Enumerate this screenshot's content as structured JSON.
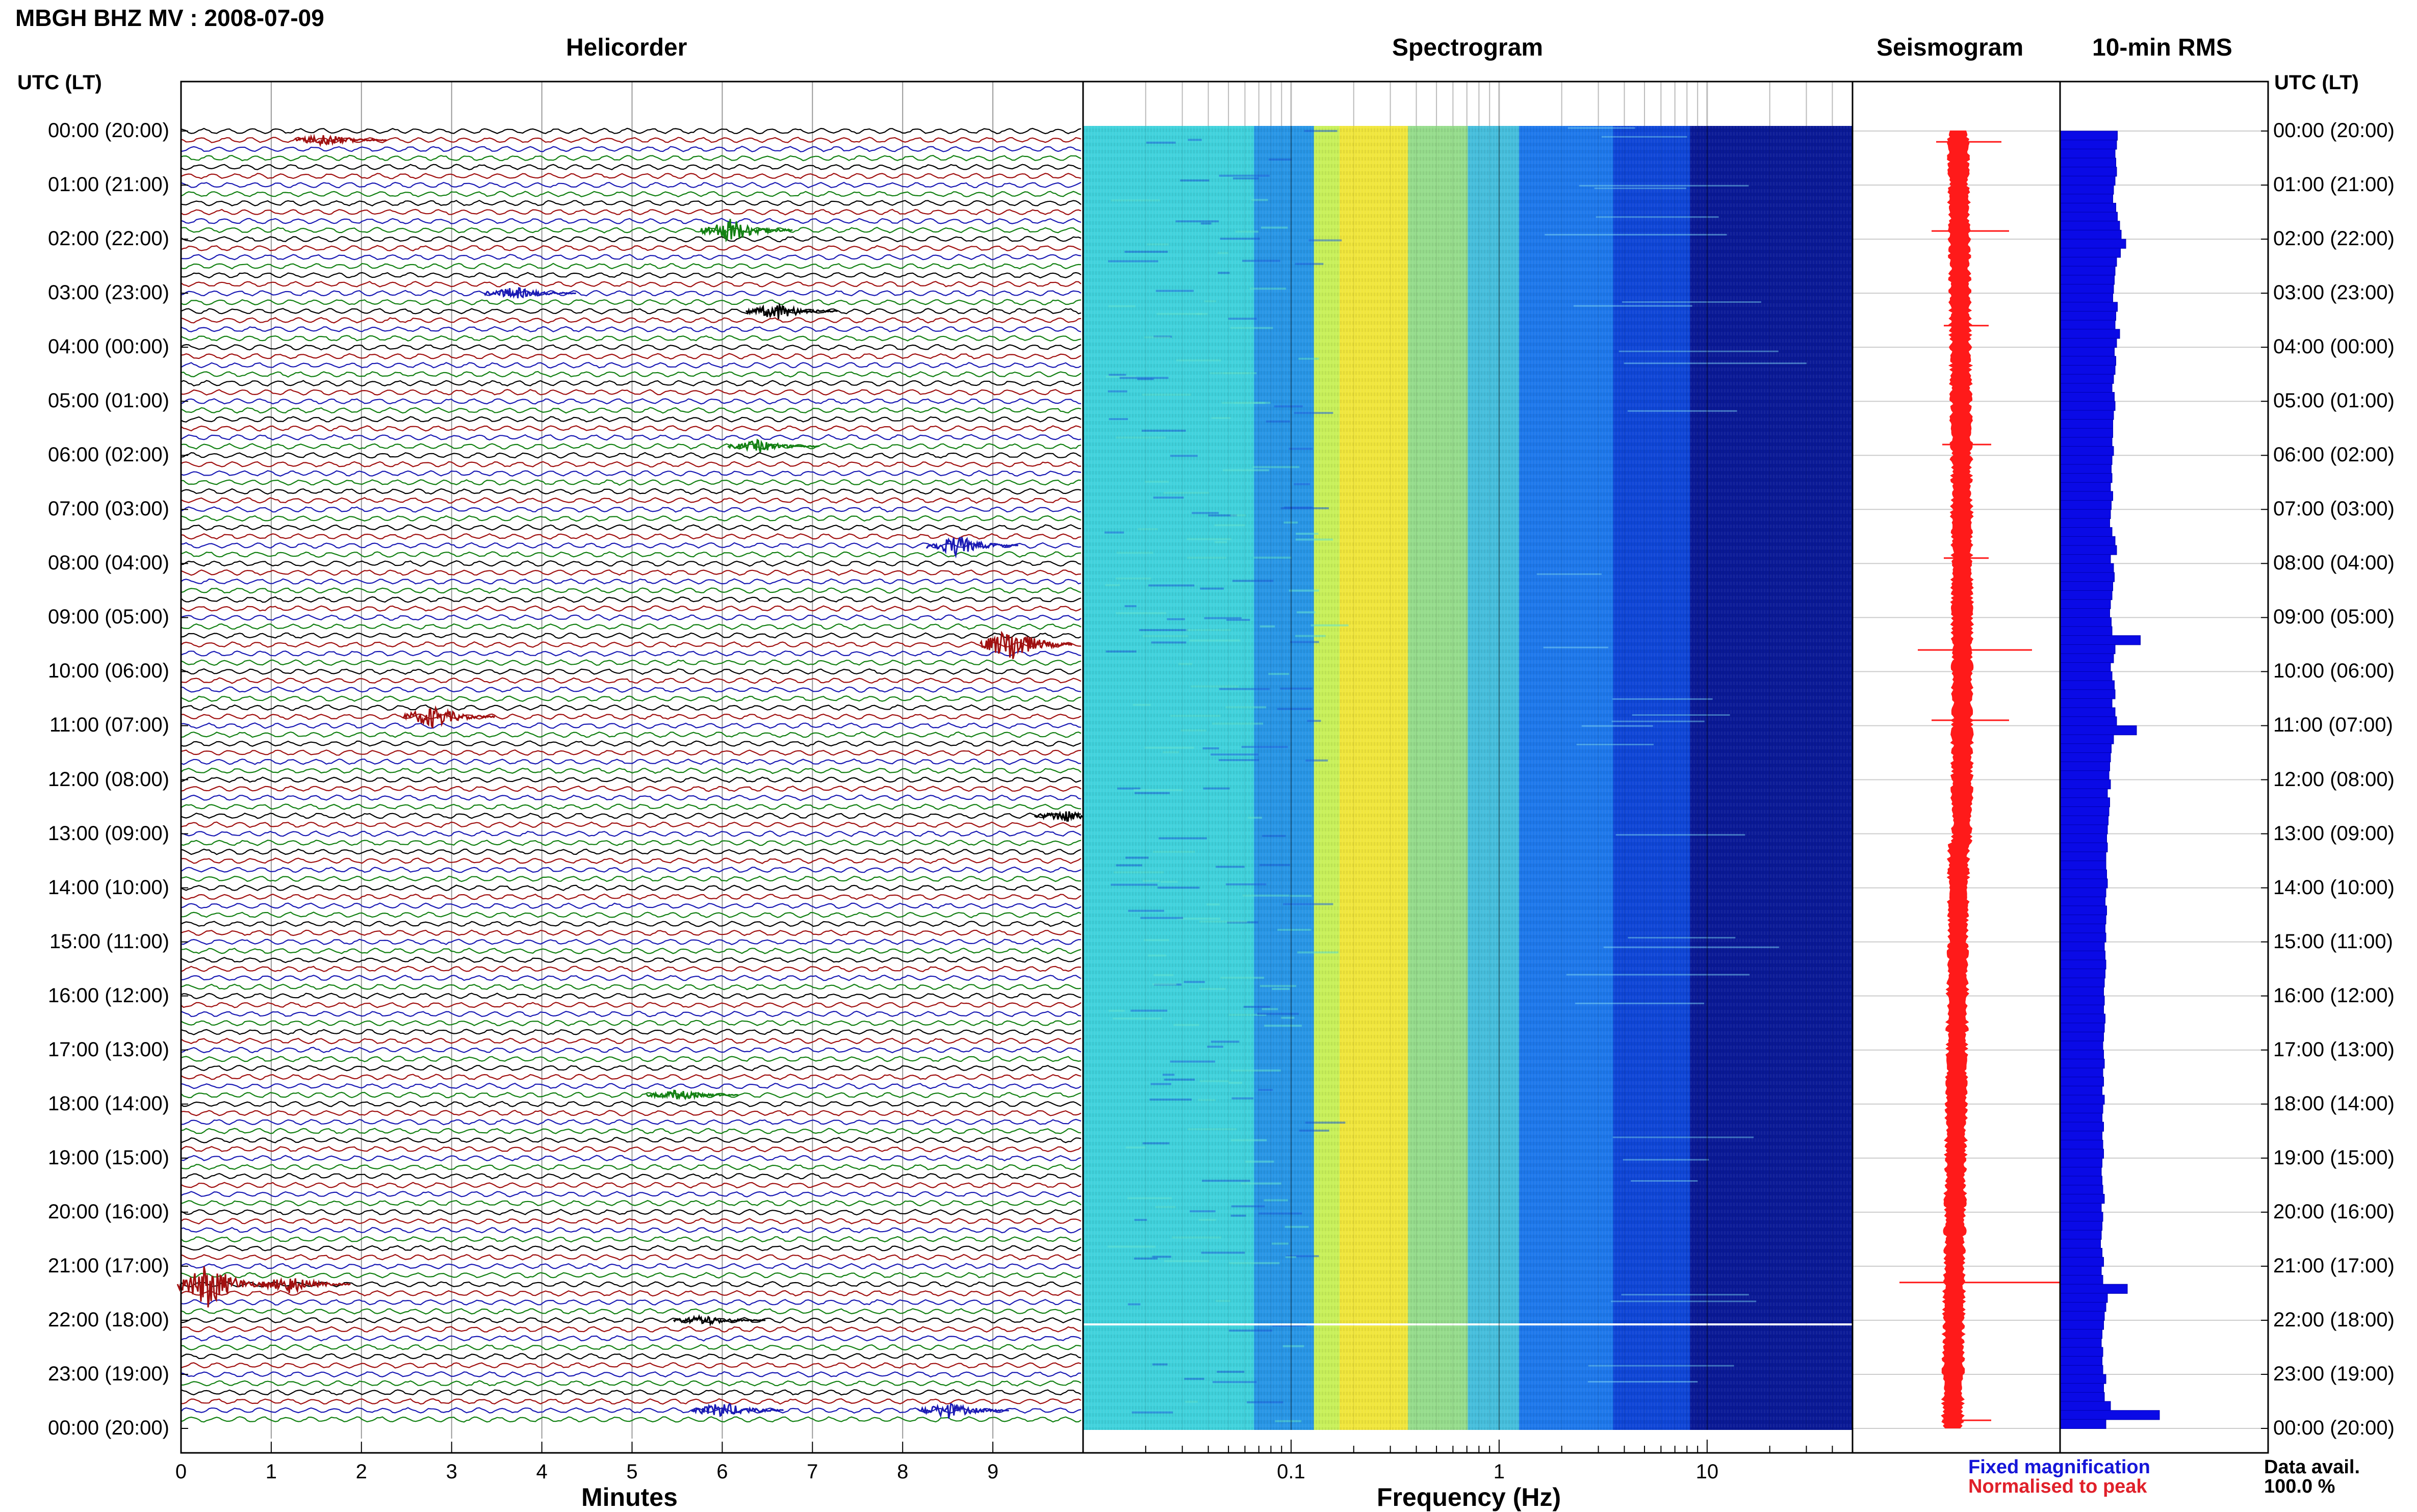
{
  "title": "MBGH BHZ MV : 2008-07-09",
  "panels": {
    "helicorder": "Helicorder",
    "spectrogram": "Spectrogram",
    "seismogram": "Seismogram",
    "rms": "10-min RMS"
  },
  "time_axis": {
    "header": "UTC (LT)",
    "labels": [
      "00:00 (20:00)",
      "01:00 (21:00)",
      "02:00 (22:00)",
      "03:00 (23:00)",
      "04:00 (00:00)",
      "05:00 (01:00)",
      "06:00 (02:00)",
      "07:00 (03:00)",
      "08:00 (04:00)",
      "09:00 (05:00)",
      "10:00 (06:00)",
      "11:00 (07:00)",
      "12:00 (08:00)",
      "13:00 (09:00)",
      "14:00 (10:00)",
      "15:00 (11:00)",
      "16:00 (12:00)",
      "17:00 (13:00)",
      "18:00 (14:00)",
      "19:00 (15:00)",
      "20:00 (16:00)",
      "21:00 (17:00)",
      "22:00 (18:00)",
      "23:00 (19:00)",
      "00:00 (20:00)"
    ]
  },
  "helicorder_axis": {
    "xlabel": "Minutes",
    "ticks": [
      "0",
      "1",
      "2",
      "3",
      "4",
      "5",
      "6",
      "7",
      "8",
      "9"
    ],
    "trace_colors": [
      "#000000",
      "#a01010",
      "#1a1ab4",
      "#128012"
    ],
    "events": [
      {
        "hour": 0.15,
        "minute": 1.6,
        "color": "#a01010",
        "amp": 0.6
      },
      {
        "hour": 1.8,
        "minute": 6.1,
        "color": "#128012",
        "amp": 1.2
      },
      {
        "hour": 3.3,
        "minute": 6.6,
        "color": "#000000",
        "amp": 0.8
      },
      {
        "hour": 3.0,
        "minute": 3.7,
        "color": "#1a1ab4",
        "amp": 0.6
      },
      {
        "hour": 5.8,
        "minute": 6.4,
        "color": "#128012",
        "amp": 0.6
      },
      {
        "hour": 7.6,
        "minute": 8.6,
        "color": "#1a1ab4",
        "amp": 1.0
      },
      {
        "hour": 9.5,
        "minute": 9.2,
        "color": "#a01010",
        "amp": 1.8
      },
      {
        "hour": 10.8,
        "minute": 2.8,
        "color": "#a01010",
        "amp": 1.1
      },
      {
        "hour": 12.7,
        "minute": 9.8,
        "color": "#000000",
        "amp": 0.6
      },
      {
        "hour": 17.8,
        "minute": 5.5,
        "color": "#128012",
        "amp": 0.5
      },
      {
        "hour": 21.3,
        "minute": 0.3,
        "color": "#a01010",
        "amp": 2.2
      },
      {
        "hour": 21.3,
        "minute": 1.2,
        "color": "#a01010",
        "amp": 0.9
      },
      {
        "hour": 22.0,
        "minute": 5.8,
        "color": "#000000",
        "amp": 0.5
      },
      {
        "hour": 23.6,
        "minute": 6.0,
        "color": "#1a1ab4",
        "amp": 0.8
      },
      {
        "hour": 23.6,
        "minute": 8.5,
        "color": "#1a1ab4",
        "amp": 0.8
      }
    ]
  },
  "spectrogram_axis": {
    "xlabel": "Frequency (Hz)",
    "ticks": [
      {
        "value": 0.1,
        "label": "0.1"
      },
      {
        "value": 1,
        "label": "1"
      },
      {
        "value": 10,
        "label": "10"
      }
    ],
    "fmin": 0.01,
    "fmax": 50
  },
  "legend": {
    "fixed": "Fixed magnification",
    "normalised": "Normalised to peak",
    "fixed_color": "#1515d8",
    "normalised_color": "#e0202a"
  },
  "data_availability": {
    "label": "Data avail.",
    "value": "100.0 %"
  },
  "chart_data": {
    "type": "heatmap",
    "title": "MBGH BHZ MV : 2008-07-09",
    "x_helicorder": {
      "label": "Minutes",
      "range": [
        0,
        10
      ]
    },
    "x_spectrogram": {
      "label": "Frequency (Hz)",
      "scale": "log",
      "range": [
        0.01,
        50
      ]
    },
    "y": {
      "label": "UTC (LT)",
      "range_hours": [
        0,
        24
      ]
    },
    "rms_10min_relative": [
      0.75,
      0.74,
      0.72,
      0.73,
      0.74,
      0.72,
      0.7,
      0.69,
      0.73,
      0.75,
      0.78,
      0.8,
      0.86,
      0.79,
      0.74,
      0.72,
      0.71,
      0.7,
      0.69,
      0.75,
      0.73,
      0.72,
      0.78,
      0.74,
      0.71,
      0.73,
      0.72,
      0.7,
      0.68,
      0.71,
      0.72,
      0.7,
      0.69,
      0.69,
      0.68,
      0.7,
      0.68,
      0.67,
      0.68,
      0.66,
      0.69,
      0.67,
      0.66,
      0.65,
      0.68,
      0.72,
      0.74,
      0.66,
      0.7,
      0.71,
      0.69,
      0.68,
      0.66,
      0.65,
      0.67,
      0.68,
      1.05,
      0.72,
      0.7,
      0.66,
      0.68,
      0.71,
      0.72,
      0.68,
      0.72,
      0.74,
      1.0,
      0.7,
      0.67,
      0.66,
      0.65,
      0.64,
      0.66,
      0.62,
      0.65,
      0.64,
      0.63,
      0.62,
      0.61,
      0.62,
      0.6,
      0.6,
      0.61,
      0.62,
      0.6,
      0.59,
      0.61,
      0.6,
      0.59,
      0.6,
      0.58,
      0.59,
      0.6,
      0.59,
      0.58,
      0.57,
      0.58,
      0.57,
      0.59,
      0.58,
      0.57,
      0.56,
      0.57,
      0.58,
      0.56,
      0.57,
      0.55,
      0.58,
      0.56,
      0.55,
      0.57,
      0.55,
      0.56,
      0.57,
      0.55,
      0.54,
      0.55,
      0.56,
      0.58,
      0.54,
      0.56,
      0.55,
      0.54,
      0.53,
      0.55,
      0.57,
      0.54,
      0.56,
      0.88,
      0.62,
      0.6,
      0.58,
      0.57,
      0.55,
      0.54,
      0.56,
      0.55,
      0.56,
      0.6,
      0.57,
      0.58,
      0.66,
      1.3,
      0.6
    ]
  }
}
